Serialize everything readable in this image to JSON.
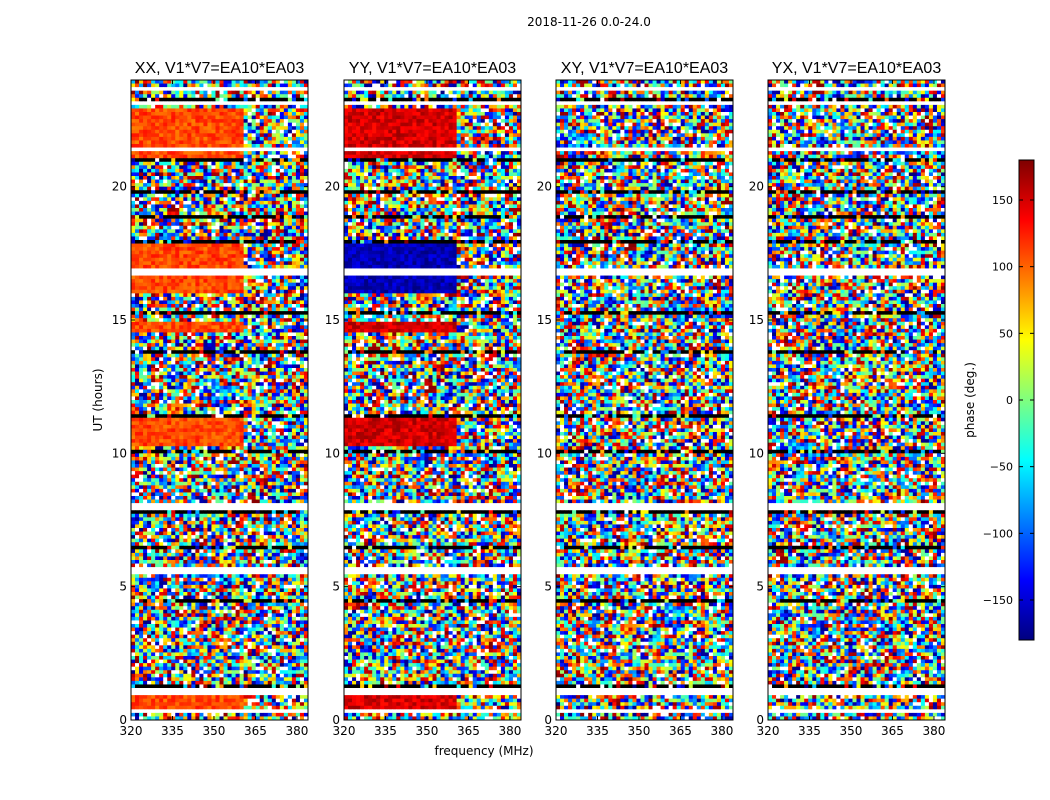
{
  "figure": {
    "suptitle": "2018-11-26 0.0-24.0"
  },
  "chart_data": {
    "type": "heatmap",
    "title": "2018-11-26 0.0-24.0",
    "xlabel": "frequency (MHz)",
    "ylabel": "UT (hours)",
    "xlim": [
      320,
      384
    ],
    "ylim": [
      0,
      24
    ],
    "x_ticks": [
      320,
      335,
      350,
      365,
      380
    ],
    "y_ticks": [
      0,
      5,
      10,
      15,
      20
    ],
    "panels": [
      {
        "title": "XX, V1*V7=EA10*EA03",
        "mean_phase": 110
      },
      {
        "title": "YY, V1*V7=EA10*EA03",
        "mean_phase": 150
      },
      {
        "title": "XY, V1*V7=EA10*EA03",
        "mean_phase": 0
      },
      {
        "title": "YX, V1*V7=EA10*EA03",
        "mean_phase": 0
      }
    ],
    "colorbar": {
      "label": "phase (deg.)",
      "range": [
        -180,
        180
      ],
      "ticks": [
        150,
        100,
        50,
        0,
        -50,
        -100,
        -150
      ],
      "tick_labels": [
        "150",
        "100",
        "50",
        "0",
        "−50",
        "−100",
        "−150"
      ],
      "colormap": "jet"
    },
    "blank_rows_ut": [
      0.3,
      1.05,
      1.1,
      5.5,
      5.6,
      8.0,
      8.1,
      16.75,
      16.8,
      21.4,
      21.45,
      23.1,
      23.7
    ],
    "dark_rows_ut": [
      0.35,
      1.25,
      2.8,
      4.5,
      6.5,
      7.8,
      10.1,
      11.4,
      13.8,
      14.8,
      15.3,
      16.4,
      17.9,
      18.9,
      19.8,
      21.0,
      22.8,
      23.3
    ]
  }
}
